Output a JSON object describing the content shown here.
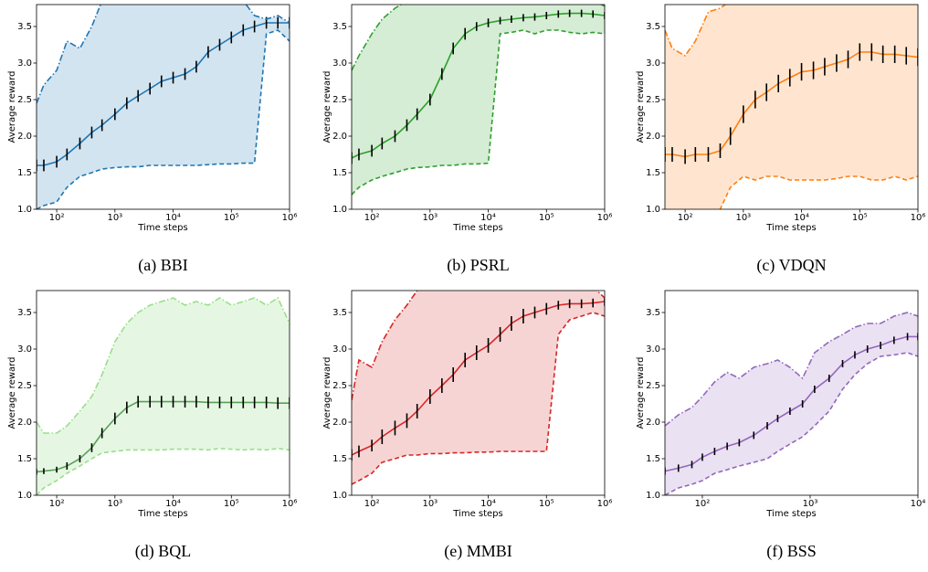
{
  "chart_data": [
    {
      "type": "line",
      "caption": "(a) BBI",
      "x_label": "Time steps",
      "y_label": "Average reward",
      "x_scale": "log",
      "xlim": [
        45,
        1000000
      ],
      "ylim": [
        1,
        3.8
      ],
      "xticks": [
        {
          "value": 100,
          "label": "10²"
        },
        {
          "value": 1000,
          "label": "10³"
        },
        {
          "value": 10000,
          "label": "10⁴"
        },
        {
          "value": 100000,
          "label": "10⁵"
        },
        {
          "value": 1000000,
          "label": "10⁶"
        }
      ],
      "yticks": [
        {
          "value": 1,
          "label": "1.0"
        },
        1.5,
        {
          "value": 2,
          "label": "2.0"
        },
        2.5,
        {
          "value": 3,
          "label": "3.0"
        },
        3.5
      ],
      "band_color": "#1f77b4",
      "band_opacity": 0.2,
      "error_color": "#000000",
      "x": [
        45,
        60,
        100,
        150,
        250,
        400,
        600,
        1000,
        1600,
        2500,
        4000,
        6300,
        10000,
        16000,
        25000,
        40000,
        63000,
        100000,
        160000,
        250000,
        400000,
        630000,
        1000000
      ],
      "series": [
        {
          "color": "#1f77b4",
          "style": "solid",
          "values": [
            1.6,
            1.6,
            1.65,
            1.75,
            1.9,
            2.05,
            2.15,
            2.3,
            2.45,
            2.55,
            2.65,
            2.75,
            2.8,
            2.85,
            2.95,
            3.15,
            3.25,
            3.35,
            3.45,
            3.5,
            3.55,
            3.55,
            3.55
          ],
          "errors": [
            0.08,
            0.08,
            0.08,
            0.08,
            0.08,
            0.08,
            0.08,
            0.08,
            0.08,
            0.08,
            0.08,
            0.08,
            0.08,
            0.08,
            0.08,
            0.08,
            0.08,
            0.08,
            0.08,
            0.08,
            0.08,
            0.08,
            0.08
          ]
        },
        {
          "color": "#1f77b4",
          "style": "dashdot",
          "values": [
            2.45,
            2.7,
            2.9,
            3.3,
            3.2,
            3.5,
            3.85,
            3.85,
            3.85,
            3.85,
            3.85,
            3.85,
            3.85,
            3.85,
            3.85,
            3.85,
            3.85,
            3.85,
            3.85,
            3.65,
            3.6,
            3.65,
            3.55
          ]
        },
        {
          "color": "#1f77b4",
          "style": "dashed",
          "values": [
            1.0,
            1.05,
            1.1,
            1.3,
            1.45,
            1.5,
            1.55,
            1.57,
            1.58,
            1.58,
            1.6,
            1.6,
            1.6,
            1.6,
            1.6,
            1.61,
            1.62,
            1.62,
            1.63,
            1.63,
            3.4,
            3.45,
            3.3
          ]
        }
      ]
    },
    {
      "type": "line",
      "caption": "(b) PSRL",
      "x_label": "Time steps",
      "y_label": "Average reward",
      "x_scale": "log",
      "xlim": [
        45,
        1000000
      ],
      "ylim": [
        1,
        3.8
      ],
      "xticks": [
        {
          "value": 100,
          "label": "10²"
        },
        {
          "value": 1000,
          "label": "10³"
        },
        {
          "value": 10000,
          "label": "10⁴"
        },
        {
          "value": 100000,
          "label": "10⁵"
        },
        {
          "value": 1000000,
          "label": "10⁶"
        }
      ],
      "yticks": [
        {
          "value": 1,
          "label": "1.0"
        },
        1.5,
        {
          "value": 2,
          "label": "2.0"
        },
        2.5,
        {
          "value": 3,
          "label": "3.0"
        },
        3.5
      ],
      "band_color": "#2ca02c",
      "band_opacity": 0.2,
      "error_color": "#000000",
      "x": [
        45,
        60,
        100,
        150,
        250,
        400,
        600,
        1000,
        1600,
        2500,
        4000,
        6300,
        10000,
        16000,
        25000,
        40000,
        63000,
        100000,
        160000,
        250000,
        400000,
        630000,
        1000000
      ],
      "series": [
        {
          "color": "#2ca02c",
          "style": "solid",
          "values": [
            1.7,
            1.75,
            1.8,
            1.9,
            2.0,
            2.15,
            2.3,
            2.5,
            2.85,
            3.2,
            3.4,
            3.5,
            3.55,
            3.58,
            3.6,
            3.62,
            3.63,
            3.65,
            3.67,
            3.68,
            3.68,
            3.67,
            3.65
          ],
          "errors": [
            0.08,
            0.08,
            0.08,
            0.08,
            0.08,
            0.08,
            0.08,
            0.08,
            0.08,
            0.08,
            0.08,
            0.06,
            0.06,
            0.05,
            0.05,
            0.05,
            0.05,
            0.05,
            0.05,
            0.05,
            0.05,
            0.05,
            0.05
          ]
        },
        {
          "color": "#2ca02c",
          "style": "dashdot",
          "values": [
            2.9,
            3.1,
            3.4,
            3.6,
            3.75,
            3.85,
            3.85,
            3.85,
            3.85,
            3.85,
            3.85,
            3.85,
            3.85,
            3.85,
            3.85,
            3.85,
            3.85,
            3.85,
            3.85,
            3.85,
            3.85,
            3.85,
            3.78
          ]
        },
        {
          "color": "#2ca02c",
          "style": "dashed",
          "values": [
            1.2,
            1.3,
            1.4,
            1.45,
            1.5,
            1.55,
            1.57,
            1.58,
            1.6,
            1.6,
            1.62,
            1.62,
            1.63,
            3.4,
            3.42,
            3.45,
            3.4,
            3.45,
            3.45,
            3.42,
            3.4,
            3.42,
            3.4
          ]
        }
      ]
    },
    {
      "type": "line",
      "caption": "(c) VDQN",
      "x_label": "Time steps",
      "y_label": "Average reward",
      "x_scale": "log",
      "xlim": [
        45,
        1000000
      ],
      "ylim": [
        1,
        3.8
      ],
      "xticks": [
        {
          "value": 100,
          "label": "10²"
        },
        {
          "value": 1000,
          "label": "10³"
        },
        {
          "value": 10000,
          "label": "10⁴"
        },
        {
          "value": 100000,
          "label": "10⁵"
        },
        {
          "value": 1000000,
          "label": "10⁶"
        }
      ],
      "yticks": [
        {
          "value": 1,
          "label": "1.0"
        },
        1.5,
        {
          "value": 2,
          "label": "2.0"
        },
        2.5,
        {
          "value": 3,
          "label": "3.0"
        },
        3.5
      ],
      "band_color": "#ff7f0e",
      "band_opacity": 0.2,
      "error_color": "#000000",
      "x": [
        45,
        60,
        100,
        150,
        250,
        400,
        600,
        1000,
        1600,
        2500,
        4000,
        6300,
        10000,
        16000,
        25000,
        40000,
        63000,
        100000,
        160000,
        250000,
        400000,
        630000,
        1000000
      ],
      "series": [
        {
          "color": "#ff7f0e",
          "style": "solid",
          "values": [
            1.75,
            1.75,
            1.72,
            1.75,
            1.75,
            1.8,
            2.0,
            2.3,
            2.5,
            2.6,
            2.72,
            2.8,
            2.88,
            2.9,
            2.95,
            3.0,
            3.05,
            3.15,
            3.15,
            3.12,
            3.12,
            3.1,
            3.08
          ],
          "errors": [
            0.1,
            0.1,
            0.1,
            0.1,
            0.1,
            0.1,
            0.12,
            0.12,
            0.12,
            0.12,
            0.12,
            0.12,
            0.12,
            0.12,
            0.12,
            0.12,
            0.12,
            0.12,
            0.12,
            0.12,
            0.12,
            0.12,
            0.12
          ]
        },
        {
          "color": "#ff7f0e",
          "style": "dashdot",
          "values": [
            3.45,
            3.2,
            3.1,
            3.3,
            3.7,
            3.75,
            3.85,
            3.85,
            3.85,
            3.85,
            3.85,
            3.85,
            3.85,
            3.85,
            3.85,
            3.85,
            3.85,
            3.85,
            3.85,
            3.85,
            3.85,
            3.85,
            3.85
          ]
        },
        {
          "color": "#ff7f0e",
          "style": "dashed",
          "values": [
            0.95,
            0.9,
            0.9,
            0.95,
            0.9,
            1.0,
            1.3,
            1.45,
            1.4,
            1.45,
            1.45,
            1.4,
            1.4,
            1.4,
            1.4,
            1.42,
            1.45,
            1.45,
            1.4,
            1.4,
            1.45,
            1.4,
            1.45
          ]
        }
      ]
    },
    {
      "type": "line",
      "caption": "(d) BQL",
      "x_label": "Time steps",
      "y_label": "Average reward",
      "x_scale": "log",
      "xlim": [
        45,
        1000000
      ],
      "ylim": [
        1,
        3.8
      ],
      "xticks": [
        {
          "value": 100,
          "label": "10²"
        },
        {
          "value": 1000,
          "label": "10³"
        },
        {
          "value": 10000,
          "label": "10⁴"
        },
        {
          "value": 100000,
          "label": "10⁵"
        },
        {
          "value": 1000000,
          "label": "10⁶"
        }
      ],
      "yticks": [
        {
          "value": 1,
          "label": "1.0"
        },
        1.5,
        {
          "value": 2,
          "label": "2.0"
        },
        2.5,
        {
          "value": 3,
          "label": "3.0"
        },
        3.5
      ],
      "band_color": "#98df8a",
      "band_opacity": 0.25,
      "error_color": "#000000",
      "x": [
        45,
        60,
        100,
        150,
        250,
        400,
        600,
        1000,
        1600,
        2500,
        4000,
        6300,
        10000,
        16000,
        25000,
        40000,
        63000,
        100000,
        160000,
        250000,
        400000,
        630000,
        1000000
      ],
      "series": [
        {
          "color": "#5aa05a",
          "style": "solid",
          "values": [
            1.32,
            1.33,
            1.35,
            1.4,
            1.5,
            1.65,
            1.85,
            2.05,
            2.2,
            2.28,
            2.28,
            2.28,
            2.28,
            2.28,
            2.28,
            2.27,
            2.27,
            2.27,
            2.27,
            2.27,
            2.27,
            2.26,
            2.26
          ],
          "errors": [
            0.04,
            0.04,
            0.04,
            0.05,
            0.05,
            0.06,
            0.07,
            0.08,
            0.08,
            0.08,
            0.08,
            0.08,
            0.08,
            0.08,
            0.08,
            0.08,
            0.08,
            0.08,
            0.08,
            0.08,
            0.08,
            0.08,
            0.08
          ]
        },
        {
          "color": "#98df8a",
          "style": "dashdot",
          "values": [
            2.0,
            1.85,
            1.85,
            1.95,
            2.15,
            2.35,
            2.65,
            3.1,
            3.35,
            3.5,
            3.6,
            3.65,
            3.7,
            3.6,
            3.65,
            3.6,
            3.7,
            3.6,
            3.65,
            3.7,
            3.6,
            3.7,
            3.35
          ]
        },
        {
          "color": "#98df8a",
          "style": "dashed",
          "values": [
            1.0,
            1.1,
            1.2,
            1.3,
            1.4,
            1.5,
            1.58,
            1.6,
            1.62,
            1.62,
            1.62,
            1.62,
            1.63,
            1.63,
            1.63,
            1.62,
            1.64,
            1.63,
            1.62,
            1.63,
            1.62,
            1.64,
            1.62
          ]
        }
      ]
    },
    {
      "type": "line",
      "caption": "(e) MMBI",
      "x_label": "Time steps",
      "y_label": "Average reward",
      "x_scale": "log",
      "xlim": [
        45,
        1000000
      ],
      "ylim": [
        1,
        3.8
      ],
      "xticks": [
        {
          "value": 100,
          "label": "10²"
        },
        {
          "value": 1000,
          "label": "10³"
        },
        {
          "value": 10000,
          "label": "10⁴"
        },
        {
          "value": 100000,
          "label": "10⁵"
        },
        {
          "value": 1000000,
          "label": "10⁶"
        }
      ],
      "yticks": [
        {
          "value": 1,
          "label": "1.0"
        },
        1.5,
        {
          "value": 2,
          "label": "2.0"
        },
        2.5,
        {
          "value": 3,
          "label": "3.0"
        },
        3.5
      ],
      "band_color": "#d62728",
      "band_opacity": 0.2,
      "error_color": "#000000",
      "x": [
        45,
        60,
        100,
        150,
        250,
        400,
        600,
        1000,
        1600,
        2500,
        4000,
        6300,
        10000,
        16000,
        25000,
        40000,
        63000,
        100000,
        160000,
        250000,
        400000,
        630000,
        1000000
      ],
      "series": [
        {
          "color": "#d62728",
          "style": "solid",
          "values": [
            1.55,
            1.6,
            1.68,
            1.8,
            1.92,
            2.02,
            2.15,
            2.35,
            2.5,
            2.65,
            2.85,
            2.95,
            3.05,
            3.2,
            3.35,
            3.45,
            3.5,
            3.55,
            3.6,
            3.62,
            3.62,
            3.63,
            3.65
          ],
          "errors": [
            0.08,
            0.08,
            0.08,
            0.1,
            0.1,
            0.1,
            0.1,
            0.1,
            0.1,
            0.1,
            0.1,
            0.1,
            0.1,
            0.1,
            0.1,
            0.1,
            0.08,
            0.08,
            0.06,
            0.06,
            0.06,
            0.06,
            0.06
          ]
        },
        {
          "color": "#d62728",
          "style": "dashdot",
          "values": [
            2.3,
            2.85,
            2.75,
            3.1,
            3.4,
            3.6,
            3.8,
            3.85,
            3.85,
            3.85,
            3.85,
            3.85,
            3.85,
            3.85,
            3.85,
            3.85,
            3.85,
            3.85,
            3.85,
            3.85,
            3.85,
            3.85,
            3.7
          ]
        },
        {
          "color": "#d62728",
          "style": "dashed",
          "values": [
            1.15,
            1.2,
            1.3,
            1.45,
            1.5,
            1.55,
            1.55,
            1.57,
            1.57,
            1.58,
            1.58,
            1.59,
            1.59,
            1.6,
            1.6,
            1.6,
            1.6,
            1.6,
            3.2,
            3.4,
            3.45,
            3.5,
            3.45
          ]
        }
      ]
    },
    {
      "type": "line",
      "caption": "(f) BSS",
      "x_label": "Time steps",
      "y_label": "Average reward",
      "x_scale": "log",
      "xlim": [
        45,
        10000
      ],
      "ylim": [
        1,
        3.8
      ],
      "xticks": [
        {
          "value": 100,
          "label": "10²"
        },
        {
          "value": 1000,
          "label": "10³"
        },
        {
          "value": 10000,
          "label": "10⁴"
        }
      ],
      "yticks": [
        {
          "value": 1,
          "label": "1.0"
        },
        1.5,
        {
          "value": 2,
          "label": "2.0"
        },
        2.5,
        {
          "value": 3,
          "label": "3.0"
        },
        3.5
      ],
      "band_color": "#9467bd",
      "band_opacity": 0.2,
      "error_color": "#000000",
      "x": [
        45,
        60,
        80,
        100,
        130,
        170,
        220,
        300,
        400,
        500,
        650,
        850,
        1100,
        1500,
        2000,
        2600,
        3400,
        4500,
        6000,
        8000,
        10000
      ],
      "series": [
        {
          "color": "#9467bd",
          "style": "solid",
          "values": [
            1.33,
            1.37,
            1.42,
            1.52,
            1.6,
            1.67,
            1.72,
            1.82,
            1.95,
            2.05,
            2.15,
            2.25,
            2.45,
            2.6,
            2.8,
            2.92,
            3.0,
            3.05,
            3.12,
            3.17,
            3.17
          ],
          "errors": [
            0.05,
            0.05,
            0.05,
            0.05,
            0.05,
            0.05,
            0.05,
            0.05,
            0.05,
            0.05,
            0.05,
            0.05,
            0.05,
            0.05,
            0.05,
            0.05,
            0.05,
            0.05,
            0.05,
            0.05,
            0.05
          ]
        },
        {
          "color": "#9467bd",
          "style": "dashdot",
          "values": [
            1.95,
            2.1,
            2.2,
            2.35,
            2.55,
            2.68,
            2.6,
            2.75,
            2.8,
            2.85,
            2.75,
            2.6,
            2.95,
            3.1,
            3.2,
            3.3,
            3.35,
            3.35,
            3.45,
            3.5,
            3.45
          ]
        },
        {
          "color": "#9467bd",
          "style": "dashed",
          "values": [
            1.0,
            1.1,
            1.15,
            1.2,
            1.3,
            1.35,
            1.4,
            1.45,
            1.5,
            1.6,
            1.7,
            1.8,
            1.95,
            2.15,
            2.45,
            2.65,
            2.8,
            2.9,
            2.92,
            2.95,
            2.9
          ]
        }
      ]
    }
  ]
}
